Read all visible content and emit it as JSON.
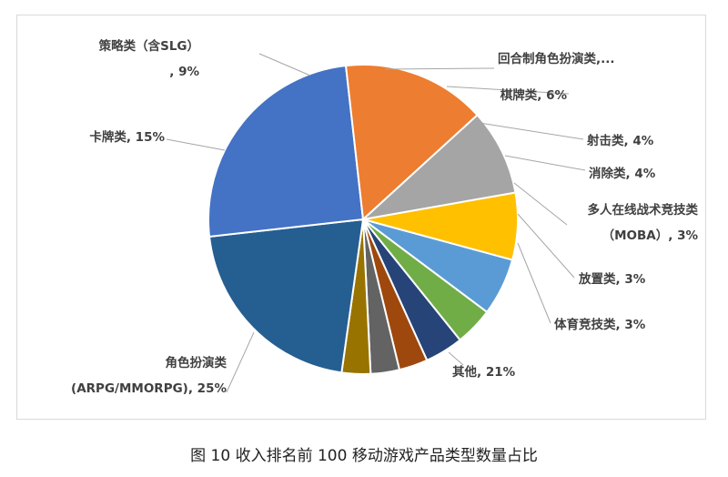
{
  "caption": "图 10 收入排名前 100 移动游戏产品类型数量占比",
  "chart_data": {
    "type": "pie",
    "legend": "none",
    "slices": [
      {
        "name": "回合制角色扮演类",
        "value": 7,
        "color": "#ffc000",
        "label_lines": [
          "回合制角色扮演类,..."
        ]
      },
      {
        "name": "棋牌类",
        "value": 6,
        "color": "#5b9bd5",
        "label_lines": [
          "棋牌类, 6%"
        ]
      },
      {
        "name": "射击类",
        "value": 4,
        "color": "#70ad47",
        "label_lines": [
          "射击类, 4%"
        ]
      },
      {
        "name": "消除类",
        "value": 4,
        "color": "#264478",
        "label_lines": [
          "消除类, 4%"
        ]
      },
      {
        "name": "多人在线战术竞技类（MOBA）",
        "value": 3,
        "color": "#9e480e",
        "label_lines": [
          "多人在线战术竞技类",
          "（MOBA）, 3%"
        ]
      },
      {
        "name": "放置类",
        "value": 3,
        "color": "#636363",
        "label_lines": [
          "放置类, 3%"
        ]
      },
      {
        "name": "体育竞技类",
        "value": 3,
        "color": "#997300",
        "label_lines": [
          "体育竞技类, 3%"
        ]
      },
      {
        "name": "其他",
        "value": 21,
        "color": "#255e91",
        "label_lines": [
          "其他, 21%"
        ]
      },
      {
        "name": "角色扮演类(ARPG/MMORPG)",
        "value": 25,
        "color": "#4472c4",
        "label_lines": [
          "角色扮演类",
          "(ARPG/MMORPG), 25%"
        ]
      },
      {
        "name": "卡牌类",
        "value": 15,
        "color": "#ed7d31",
        "label_lines": [
          "卡牌类, 15%"
        ]
      },
      {
        "name": "策略类（含SLG）",
        "value": 9,
        "color": "#a5a5a5",
        "label_lines": [
          "策略类（含SLG）",
          ", 9%"
        ]
      }
    ]
  }
}
